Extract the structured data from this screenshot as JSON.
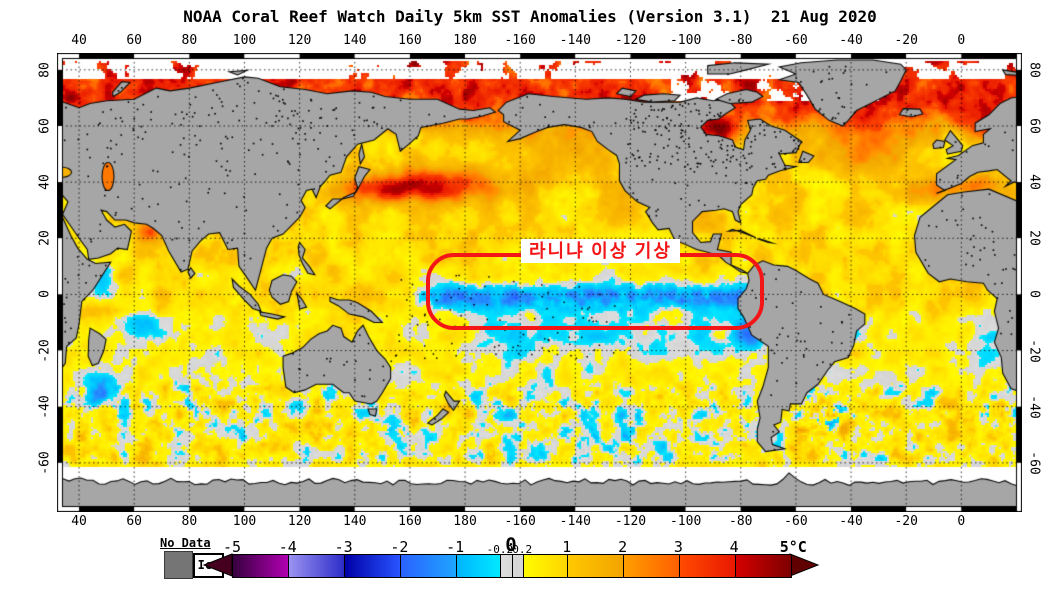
{
  "title": "NOAA Coral Reef Watch Daily 5km SST Anomalies (Version 3.1)  21 Aug 2020",
  "map": {
    "annotation": {
      "text": "라니냐 이상 기상",
      "box_color": "#f41616",
      "text_color": "#f41616",
      "background": "#ffffff"
    },
    "land_color": "#a6a6a6",
    "ice_color": "#ffffff",
    "lon_ticks": [
      {
        "pos": 40,
        "label": "40"
      },
      {
        "pos": 60,
        "label": "60"
      },
      {
        "pos": 80,
        "label": "80"
      },
      {
        "pos": 100,
        "label": "100"
      },
      {
        "pos": 120,
        "label": "120"
      },
      {
        "pos": 140,
        "label": "140"
      },
      {
        "pos": 160,
        "label": "160"
      },
      {
        "pos": 180,
        "label": "180"
      },
      {
        "pos": 200,
        "label": "-160"
      },
      {
        "pos": 220,
        "label": "-140"
      },
      {
        "pos": 240,
        "label": "-120"
      },
      {
        "pos": 260,
        "label": "-100"
      },
      {
        "pos": 280,
        "label": "-80"
      },
      {
        "pos": 300,
        "label": "-60"
      },
      {
        "pos": 320,
        "label": "-40"
      },
      {
        "pos": 340,
        "label": "-20"
      },
      {
        "pos": 360,
        "label": "0"
      }
    ],
    "lat_ticks": [
      {
        "v": 80,
        "label": "80"
      },
      {
        "v": 60,
        "label": "60"
      },
      {
        "v": 40,
        "label": "40"
      },
      {
        "v": 20,
        "label": "20"
      },
      {
        "v": 0,
        "label": "0"
      },
      {
        "v": -20,
        "label": "-20"
      },
      {
        "v": -40,
        "label": "-40"
      },
      {
        "v": -60,
        "label": "-60"
      }
    ]
  },
  "legend": {
    "no_data_label": "No Data",
    "ice_label": "Ice",
    "no_data_color": "#757575",
    "left_arrow_color": "#45001f",
    "right_arrow_color": "#600000",
    "ticks": [
      {
        "v": -5,
        "label": "-5"
      },
      {
        "v": -4,
        "label": "-4"
      },
      {
        "v": -3,
        "label": "-3"
      },
      {
        "v": -2,
        "label": "-2"
      },
      {
        "v": -1,
        "label": "-1"
      },
      {
        "v": -0.2,
        "label": "-0.2"
      },
      {
        "v": 0,
        "label": "0"
      },
      {
        "v": 0.2,
        "label": "0.2"
      },
      {
        "v": 1,
        "label": "1"
      },
      {
        "v": 2,
        "label": "2"
      },
      {
        "v": 3,
        "label": "3"
      },
      {
        "v": 4,
        "label": "4"
      },
      {
        "v": 5,
        "label": "5°C"
      }
    ],
    "colormap": [
      {
        "v": -5.0,
        "c": "#37003f"
      },
      {
        "v": -4.02,
        "c": "#b000b0"
      },
      {
        "v": -4.0,
        "c": "#9b93f2"
      },
      {
        "v": -3.02,
        "c": "#2e2ec8"
      },
      {
        "v": -3.0,
        "c": "#0000a5"
      },
      {
        "v": -2.02,
        "c": "#2853ff"
      },
      {
        "v": -2.0,
        "c": "#2b61ff"
      },
      {
        "v": -1.02,
        "c": "#1fa4ff"
      },
      {
        "v": -1.0,
        "c": "#00b4ff"
      },
      {
        "v": -0.22,
        "c": "#00e8ff"
      },
      {
        "v": -0.2,
        "c": "#dddddd"
      },
      {
        "v": 0.2,
        "c": "#d4d4d4"
      },
      {
        "v": 0.22,
        "c": "#fffb00"
      },
      {
        "v": 1.0,
        "c": "#ffd400"
      },
      {
        "v": 1.02,
        "c": "#ffc800"
      },
      {
        "v": 2.0,
        "c": "#f2a300"
      },
      {
        "v": 2.02,
        "c": "#ff9d00"
      },
      {
        "v": 3.0,
        "c": "#ff5e00"
      },
      {
        "v": 3.02,
        "c": "#ff4a00"
      },
      {
        "v": 4.0,
        "c": "#e91800"
      },
      {
        "v": 4.02,
        "c": "#d40000"
      },
      {
        "v": 5.0,
        "c": "#7e0000"
      }
    ]
  },
  "chart_data": {
    "type": "heatmap",
    "title": "NOAA Coral Reef Watch Daily 5km SST Anomalies (Version 3.1)  21 Aug 2020",
    "units": "°C",
    "scale_range": [
      -5,
      5
    ],
    "colorbar_ticks": [
      -5,
      -4,
      -3,
      -2,
      -1,
      -0.2,
      0,
      0.2,
      1,
      2,
      3,
      4,
      5
    ],
    "x_axis_ticks_longitude": [
      40,
      60,
      80,
      100,
      120,
      140,
      160,
      180,
      -160,
      -140,
      -120,
      -100,
      -80,
      -60,
      -40,
      -20,
      0
    ],
    "y_axis_ticks_latitude": [
      80,
      60,
      40,
      20,
      0,
      -20,
      -40,
      -60
    ],
    "projection": "equirectangular, Pacific-centered (approx 32E to 382E, 86N to 77.5S)",
    "legend_extra": [
      "No Data (gray)",
      "Ice (white)"
    ],
    "annotation": {
      "text": "라니냐 이상 기상",
      "style": "red text on white box inside red rounded rectangle over equatorial Pacific"
    },
    "highlight_box_region": {
      "lon_range": [
        "165E",
        "72W"
      ],
      "lat_range": [
        "15N",
        "13S"
      ]
    },
    "regions": [
      {
        "area": "Equatorial Pacific cold tongue (inside red box)",
        "sst_anomaly_c": "-0.5 to -2.5"
      },
      {
        "area": "Northwest Pacific ~35-45N, 145E-170W",
        "sst_anomaly_c": "+2 to +4"
      },
      {
        "area": "Arctic Ocean coastal seas",
        "sst_anomaly_c": "+3 to +5"
      },
      {
        "area": "Hudson Bay",
        "sst_anomaly_c": "+3 to +5"
      },
      {
        "area": "Northern-hemisphere subtropical oceans",
        "sst_anomaly_c": "+0.5 to +1.5"
      },
      {
        "area": "Southern Ocean 35-60S",
        "sst_anomaly_c": "-2 to +2 mixed eddies"
      },
      {
        "area": "South Indian Ocean 10-45S",
        "sst_anomaly_c": "-1 to 0"
      },
      {
        "area": "Southern high latitudes below 62S",
        "sst_anomaly_c": "no data (white band)"
      }
    ]
  }
}
